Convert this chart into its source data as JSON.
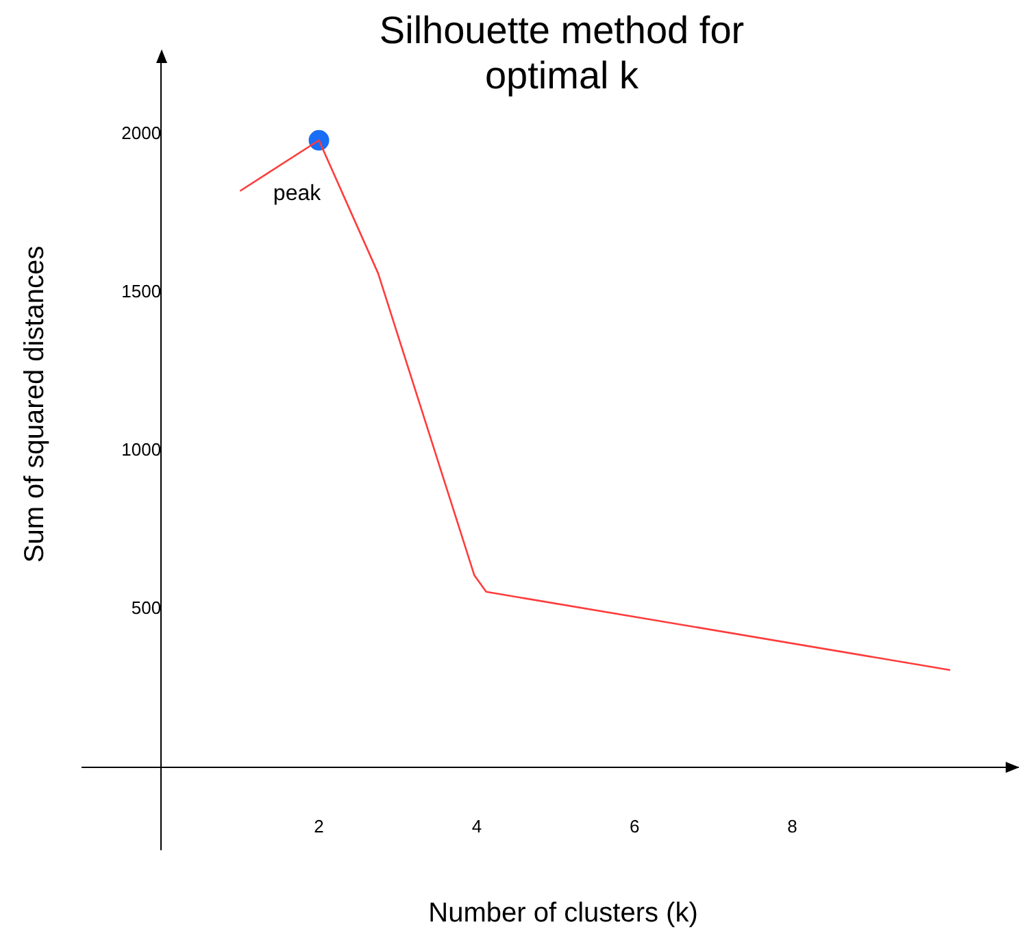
{
  "chart_data": {
    "type": "line",
    "title": "Silhouette method for optimal k",
    "xlabel": "Number of clusters (k)",
    "ylabel": "Sum of squared distances",
    "series": [
      {
        "color": "#ff3b3b",
        "x": [
          1,
          2,
          2.75,
          3.97,
          4.12,
          10
        ],
        "values": [
          1820,
          1980,
          1560,
          606,
          554,
          307
        ],
        "marker": "none"
      },
      {
        "type": "scatter",
        "color": "#1a6ef5",
        "x": [
          2
        ],
        "values": [
          1980
        ],
        "marker": "circle"
      }
    ],
    "annotations": [
      {
        "text": "peak",
        "x": 2,
        "y": 1980
      }
    ],
    "xlim": [
      -1,
      10.86
    ],
    "ylim": [
      -260,
      2250
    ],
    "xticks": [
      2,
      4,
      6,
      8
    ],
    "yticks": [
      500,
      1000,
      1500,
      2000
    ],
    "grid": false,
    "legend": false
  }
}
